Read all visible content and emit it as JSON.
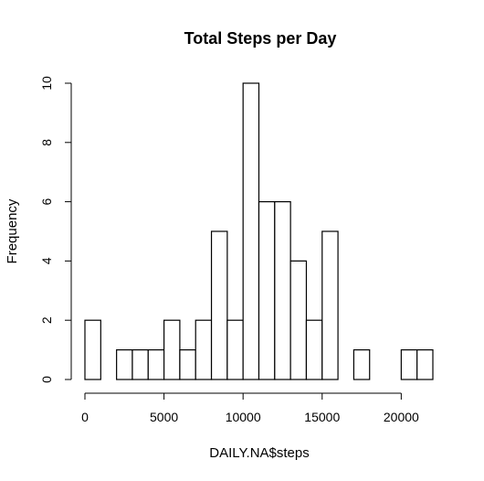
{
  "chart_data": {
    "type": "bar",
    "title": "Total Steps per Day",
    "xlabel": "DAILY.NA$steps",
    "ylabel": "Frequency",
    "bin_width": 1000,
    "xlim": [
      0,
      22000
    ],
    "ylim": [
      0,
      10
    ],
    "x_ticks": [
      0,
      5000,
      10000,
      15000,
      20000
    ],
    "y_ticks": [
      0,
      2,
      4,
      6,
      8,
      10
    ],
    "bins": [
      {
        "start": 0,
        "end": 1000,
        "count": 2
      },
      {
        "start": 1000,
        "end": 2000,
        "count": 0
      },
      {
        "start": 2000,
        "end": 3000,
        "count": 1
      },
      {
        "start": 3000,
        "end": 4000,
        "count": 1
      },
      {
        "start": 4000,
        "end": 5000,
        "count": 1
      },
      {
        "start": 5000,
        "end": 6000,
        "count": 2
      },
      {
        "start": 6000,
        "end": 7000,
        "count": 1
      },
      {
        "start": 7000,
        "end": 8000,
        "count": 2
      },
      {
        "start": 8000,
        "end": 9000,
        "count": 5
      },
      {
        "start": 9000,
        "end": 10000,
        "count": 2
      },
      {
        "start": 10000,
        "end": 11000,
        "count": 10
      },
      {
        "start": 11000,
        "end": 12000,
        "count": 6
      },
      {
        "start": 12000,
        "end": 13000,
        "count": 6
      },
      {
        "start": 13000,
        "end": 14000,
        "count": 4
      },
      {
        "start": 14000,
        "end": 15000,
        "count": 2
      },
      {
        "start": 15000,
        "end": 16000,
        "count": 5
      },
      {
        "start": 16000,
        "end": 17000,
        "count": 0
      },
      {
        "start": 17000,
        "end": 18000,
        "count": 1
      },
      {
        "start": 18000,
        "end": 19000,
        "count": 0
      },
      {
        "start": 19000,
        "end": 20000,
        "count": 0
      },
      {
        "start": 20000,
        "end": 21000,
        "count": 1
      },
      {
        "start": 21000,
        "end": 22000,
        "count": 1
      }
    ],
    "bar_fill": "#ffffff",
    "bar_stroke": "#000000",
    "grid": false,
    "legend": "none"
  }
}
